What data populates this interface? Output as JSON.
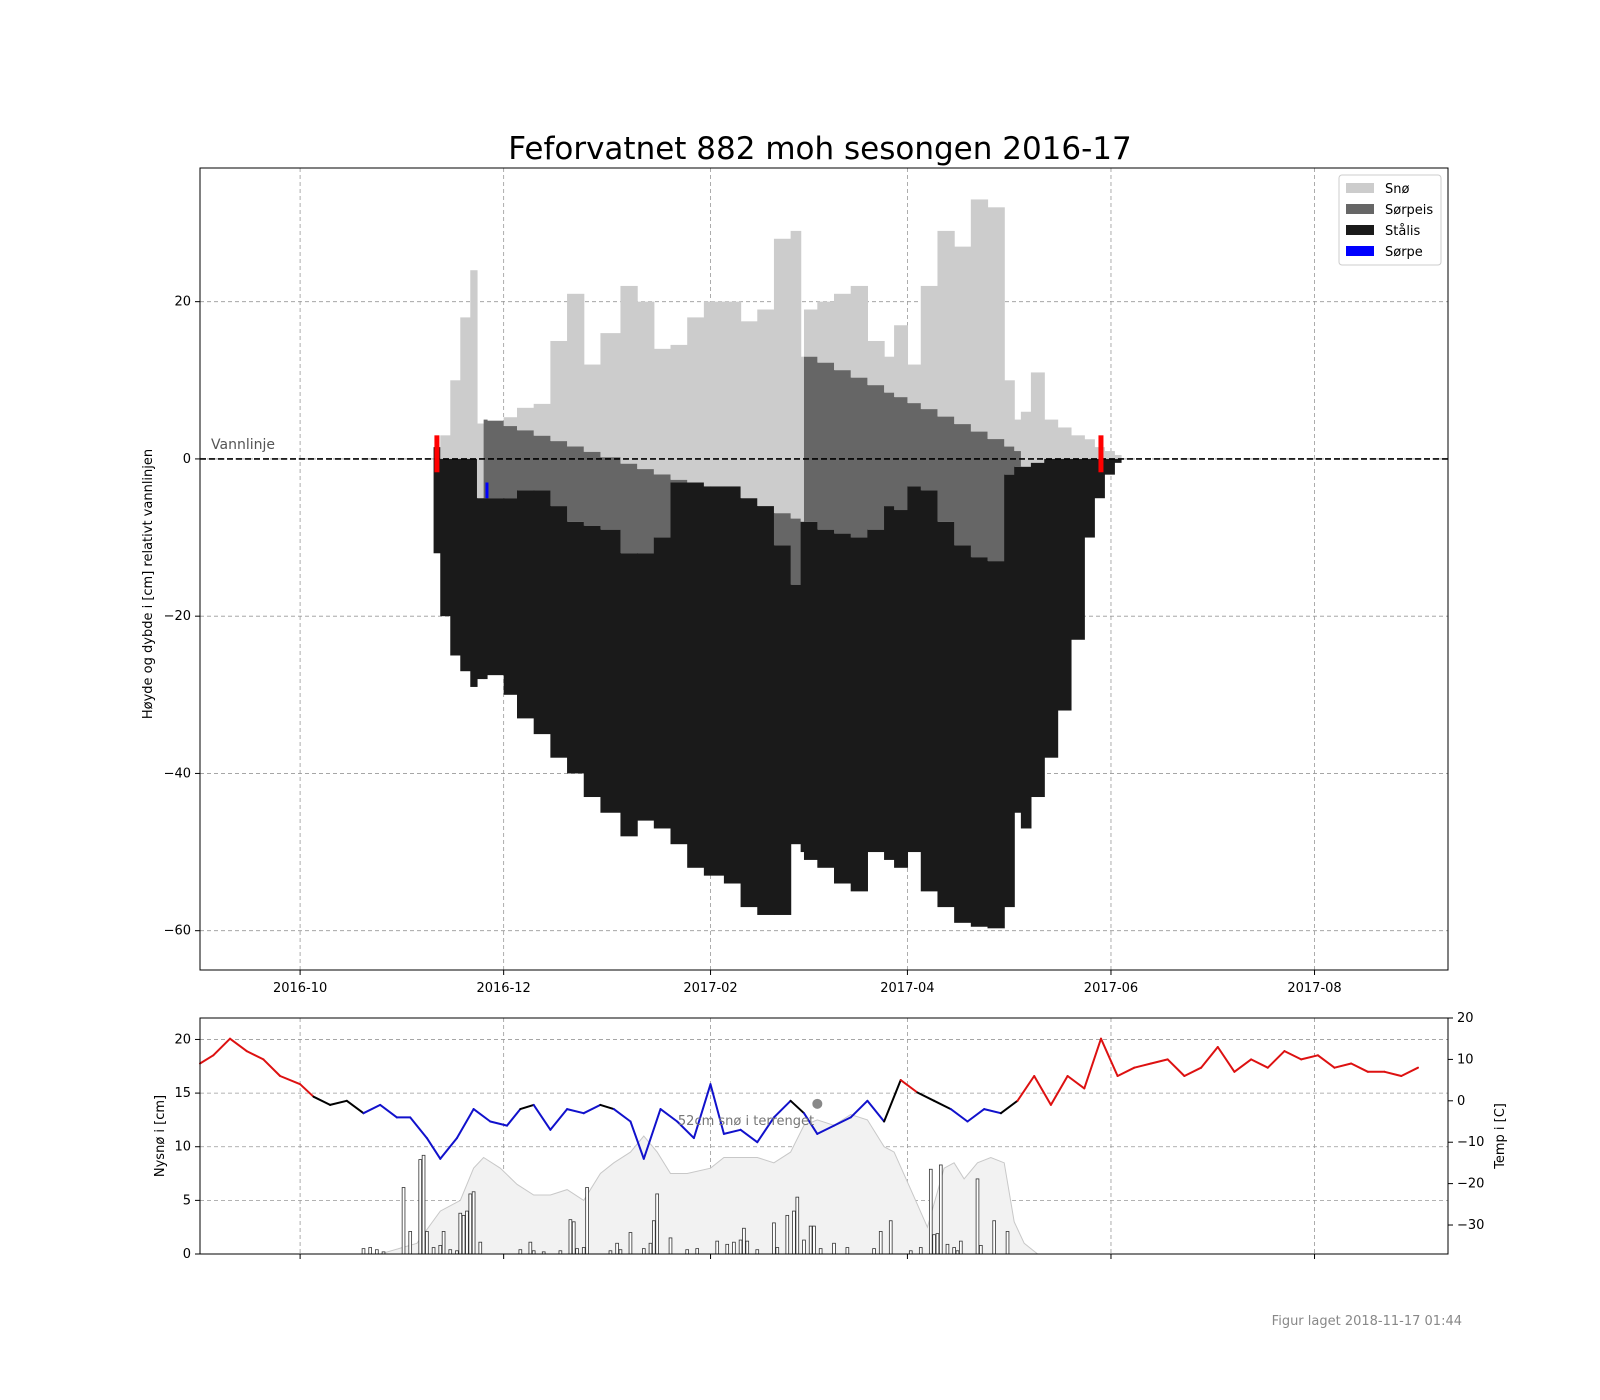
{
  "footer": "Figur laget 2018-11-17 01:44",
  "colors": {
    "snow": "#cccccc",
    "slush_ice": "#666666",
    "black_ice": "#1a1a1a",
    "slush": "#0000ff",
    "temp_warm": "#dd1111",
    "temp_cold": "#1111cc",
    "temp_mid": "#000000",
    "marker": "#ff0000"
  },
  "chart_data": [
    {
      "type": "area",
      "title": "Feforvatnet 882 moh sesongen 2016-17",
      "ylabel": "Høyde og dybde i [cm] relativt vannlinjen",
      "xlabel": "",
      "xlim": [
        "2016-09-01",
        "2017-09-10"
      ],
      "ylim": [
        -65,
        37
      ],
      "x_ticks": [
        "2016-10",
        "2016-12",
        "2017-02",
        "2017-04",
        "2017-06",
        "2017-08"
      ],
      "y_ticks": [
        20,
        0,
        -20,
        -40,
        -60
      ],
      "grid": true,
      "legend_position": "top-right",
      "annotation": "Vannlinje",
      "legend": [
        {
          "label": "Snø",
          "color": "#cccccc"
        },
        {
          "label": "Sørpeis",
          "color": "#666666"
        },
        {
          "label": "Stålis",
          "color": "#1a1a1a"
        },
        {
          "label": "Sørpe",
          "color": "#0000ff"
        }
      ],
      "dates": [
        "2016-11-10",
        "2016-11-12",
        "2016-11-15",
        "2016-11-18",
        "2016-11-21",
        "2016-11-23",
        "2016-11-25",
        "2016-11-26",
        "2016-12-01",
        "2016-12-05",
        "2016-12-10",
        "2016-12-15",
        "2016-12-20",
        "2016-12-25",
        "2016-12-30",
        "2017-01-05",
        "2017-01-10",
        "2017-01-15",
        "2017-01-20",
        "2017-01-25",
        "2017-01-30",
        "2017-02-05",
        "2017-02-10",
        "2017-02-15",
        "2017-02-20",
        "2017-02-25",
        "2017-02-28",
        "2017-03-01",
        "2017-03-05",
        "2017-03-10",
        "2017-03-15",
        "2017-03-20",
        "2017-03-25",
        "2017-03-28",
        "2017-04-01",
        "2017-04-05",
        "2017-04-10",
        "2017-04-15",
        "2017-04-20",
        "2017-04-25",
        "2017-04-30",
        "2017-05-03",
        "2017-05-05",
        "2017-05-08",
        "2017-05-12",
        "2017-05-16",
        "2017-05-20",
        "2017-05-24",
        "2017-05-27",
        "2017-05-30",
        "2017-06-02",
        "2017-06-04"
      ],
      "snow_top": [
        1.5,
        3,
        10,
        18,
        24,
        4.5,
        4.5,
        4.8,
        5.3,
        6.5,
        7,
        15,
        21,
        12,
        16,
        22,
        20,
        14,
        14.5,
        18,
        20,
        20,
        17.5,
        19,
        28,
        29,
        13,
        19,
        20,
        21,
        22,
        15,
        13,
        17,
        12,
        22,
        29,
        27,
        33,
        32,
        10,
        5,
        6,
        11,
        5,
        4,
        3,
        2.5,
        1.5,
        1,
        0.5,
        0
      ],
      "slush_bottom": [
        1.5,
        0,
        0,
        0,
        0,
        -5,
        -5,
        -5,
        -5,
        -4,
        -4,
        -6,
        -8,
        -8.5,
        -9,
        -12,
        -12,
        -10,
        -3,
        -3,
        -3.5,
        -3.5,
        -5,
        -6,
        -11,
        -16,
        -8,
        -8,
        -9,
        -9.5,
        -10,
        -9,
        -6,
        -6.5,
        -3.5,
        -4,
        -8,
        -11,
        -12.5,
        -13,
        -2,
        -1,
        -1,
        -0.5,
        0,
        0,
        0,
        0,
        0,
        0,
        0,
        0
      ],
      "ice_bottom": [
        -12,
        -20,
        -25,
        -27,
        -29,
        -28,
        -28,
        -27.5,
        -30,
        -33,
        -35,
        -38,
        -40,
        -43,
        -45,
        -48,
        -46,
        -47,
        -49,
        -52,
        -53,
        -54,
        -57,
        -58,
        -58,
        -49,
        -50,
        -51,
        -52,
        -54,
        -55,
        -50,
        -51,
        -52,
        -50,
        -55,
        -57,
        -59,
        -59.5,
        -59.7,
        -57,
        -45,
        -47,
        -43,
        -38,
        -32,
        -23,
        -10,
        -5,
        -2,
        -0.5,
        0
      ],
      "slush_markers": [
        {
          "date": "2016-11-26",
          "top": -3,
          "bottom": -5
        }
      ],
      "start_end_markers": [
        "2016-11-11",
        "2017-05-29"
      ]
    },
    {
      "type": "bar",
      "ylabel": "Nysnø i [cm]",
      "y2label": "Temp i [C]",
      "xlim": [
        "2016-09-01",
        "2017-09-10"
      ],
      "ylim": [
        0,
        22
      ],
      "y_ticks": [
        0,
        5,
        10,
        15,
        20
      ],
      "y2lim": [
        -37,
        20
      ],
      "y2_ticks": [
        20,
        10,
        0,
        -10,
        -20,
        -30
      ],
      "grid": true,
      "snow_depth_label": "52cm snø i terrenget",
      "snow_depth_marker": {
        "date": "2017-03-05",
        "value": 14
      },
      "new_snow": {
        "dates": [
          "2016-10-20",
          "2016-10-22",
          "2016-10-24",
          "2016-10-26",
          "2016-11-01",
          "2016-11-03",
          "2016-11-06",
          "2016-11-07",
          "2016-11-08",
          "2016-11-10",
          "2016-11-12",
          "2016-11-13",
          "2016-11-15",
          "2016-11-17",
          "2016-11-18",
          "2016-11-19",
          "2016-11-20",
          "2016-11-21",
          "2016-11-22",
          "2016-11-24",
          "2016-12-06",
          "2016-12-09",
          "2016-12-10",
          "2016-12-13",
          "2016-12-18",
          "2016-12-21",
          "2016-12-22",
          "2016-12-23",
          "2016-12-25",
          "2016-12-26",
          "2017-01-02",
          "2017-01-04",
          "2017-01-05",
          "2017-01-08",
          "2017-01-12",
          "2017-01-14",
          "2017-01-15",
          "2017-01-16",
          "2017-01-20",
          "2017-01-25",
          "2017-01-28",
          "2017-02-03",
          "2017-02-06",
          "2017-02-08",
          "2017-02-10",
          "2017-02-11",
          "2017-02-12",
          "2017-02-15",
          "2017-02-20",
          "2017-02-21",
          "2017-02-24",
          "2017-02-26",
          "2017-02-27",
          "2017-03-01",
          "2017-03-03",
          "2017-03-04",
          "2017-03-06",
          "2017-03-10",
          "2017-03-14",
          "2017-03-22",
          "2017-03-24",
          "2017-03-27",
          "2017-04-02",
          "2017-04-05",
          "2017-04-08",
          "2017-04-09",
          "2017-04-10",
          "2017-04-11",
          "2017-04-13",
          "2017-04-15",
          "2017-04-16",
          "2017-04-17",
          "2017-04-22",
          "2017-04-23",
          "2017-04-27",
          "2017-05-01"
        ],
        "values": [
          0.5,
          0.6,
          0.4,
          0.2,
          6.2,
          2.1,
          8.8,
          9.2,
          2.1,
          0.6,
          0.8,
          2.1,
          0.4,
          0.3,
          3.8,
          3.6,
          4.0,
          5.6,
          5.8,
          1.1,
          0.4,
          1.1,
          0.3,
          0.2,
          0.3,
          3.2,
          3.0,
          0.5,
          0.6,
          6.2,
          0.3,
          1.0,
          0.4,
          2.0,
          0.5,
          1.0,
          3.1,
          5.6,
          1.5,
          0.4,
          0.5,
          1.2,
          0.9,
          1.1,
          1.3,
          2.4,
          1.2,
          0.4,
          2.9,
          0.6,
          3.6,
          4.0,
          5.3,
          1.3,
          2.6,
          2.6,
          0.5,
          1.0,
          0.6,
          0.5,
          2.1,
          3.1,
          0.3,
          0.6,
          7.9,
          1.8,
          1.9,
          8.3,
          0.9,
          0.6,
          0.3,
          1.2,
          7.0,
          0.8,
          3.1,
          2.1
        ]
      },
      "snow_depth_series": {
        "dates": [
          "2016-10-25",
          "2016-11-05",
          "2016-11-12",
          "2016-11-18",
          "2016-11-22",
          "2016-11-25",
          "2016-11-30",
          "2016-12-05",
          "2016-12-10",
          "2016-12-15",
          "2016-12-20",
          "2016-12-25",
          "2016-12-30",
          "2017-01-03",
          "2017-01-08",
          "2017-01-12",
          "2017-01-16",
          "2017-01-20",
          "2017-01-25",
          "2017-02-01",
          "2017-02-05",
          "2017-02-10",
          "2017-02-15",
          "2017-02-20",
          "2017-02-25",
          "2017-03-01",
          "2017-03-05",
          "2017-03-10",
          "2017-03-15",
          "2017-03-20",
          "2017-03-25",
          "2017-03-28",
          "2017-04-02",
          "2017-04-07",
          "2017-04-12",
          "2017-04-15",
          "2017-04-18",
          "2017-04-22",
          "2017-04-26",
          "2017-04-30",
          "2017-05-03",
          "2017-05-06",
          "2017-05-10",
          "2017-05-14"
        ],
        "values": [
          0,
          1,
          4,
          5,
          8,
          9,
          8,
          6.5,
          5.5,
          5.5,
          6,
          5,
          7.5,
          8.5,
          9.5,
          11,
          9.5,
          7.5,
          7.5,
          8,
          9,
          9,
          9,
          8.5,
          9.5,
          12,
          12.5,
          12,
          13,
          12.5,
          10,
          9.5,
          6,
          2.5,
          8,
          8.5,
          7,
          8.5,
          9,
          8.5,
          3,
          1,
          0,
          0
        ]
      },
      "temperature": {
        "dates": [
          "2016-09-01",
          "2016-09-05",
          "2016-09-10",
          "2016-09-15",
          "2016-09-20",
          "2016-09-25",
          "2016-10-01",
          "2016-10-05",
          "2016-10-10",
          "2016-10-15",
          "2016-10-20",
          "2016-10-25",
          "2016-10-30",
          "2016-11-03",
          "2016-11-08",
          "2016-11-12",
          "2016-11-17",
          "2016-11-22",
          "2016-11-27",
          "2016-12-02",
          "2016-12-06",
          "2016-12-10",
          "2016-12-15",
          "2016-12-20",
          "2016-12-25",
          "2016-12-30",
          "2017-01-03",
          "2017-01-08",
          "2017-01-12",
          "2017-01-17",
          "2017-01-22",
          "2017-01-27",
          "2017-02-01",
          "2017-02-05",
          "2017-02-10",
          "2017-02-15",
          "2017-02-20",
          "2017-02-25",
          "2017-03-01",
          "2017-03-05",
          "2017-03-10",
          "2017-03-15",
          "2017-03-20",
          "2017-03-25",
          "2017-03-30",
          "2017-04-04",
          "2017-04-09",
          "2017-04-14",
          "2017-04-19",
          "2017-04-24",
          "2017-04-29",
          "2017-05-04",
          "2017-05-09",
          "2017-05-14",
          "2017-05-19",
          "2017-05-24",
          "2017-05-29",
          "2017-06-03",
          "2017-06-08",
          "2017-06-13",
          "2017-06-18",
          "2017-06-23",
          "2017-06-28",
          "2017-07-03",
          "2017-07-08",
          "2017-07-13",
          "2017-07-18",
          "2017-07-23",
          "2017-07-28",
          "2017-08-02",
          "2017-08-07",
          "2017-08-12",
          "2017-08-17",
          "2017-08-22",
          "2017-08-27",
          "2017-09-01"
        ],
        "values": [
          9,
          11,
          15,
          12,
          10,
          6,
          4,
          1,
          -1,
          0,
          -3,
          -1,
          -4,
          -4,
          -9,
          -14,
          -9,
          -2,
          -5,
          -6,
          -2,
          -1,
          -7,
          -2,
          -3,
          -1,
          -2,
          -5,
          -14,
          -2,
          -5,
          -9,
          4,
          -8,
          -7,
          -10,
          -4,
          0,
          -3,
          -8,
          -6,
          -4,
          0,
          -5,
          5,
          2,
          0,
          -2,
          -5,
          -2,
          -3,
          0,
          6,
          -1,
          6,
          3,
          15,
          6,
          8,
          9,
          10,
          6,
          8,
          13,
          7,
          10,
          8,
          12,
          10,
          11,
          8,
          9,
          7,
          7,
          6,
          8
        ]
      }
    }
  ]
}
